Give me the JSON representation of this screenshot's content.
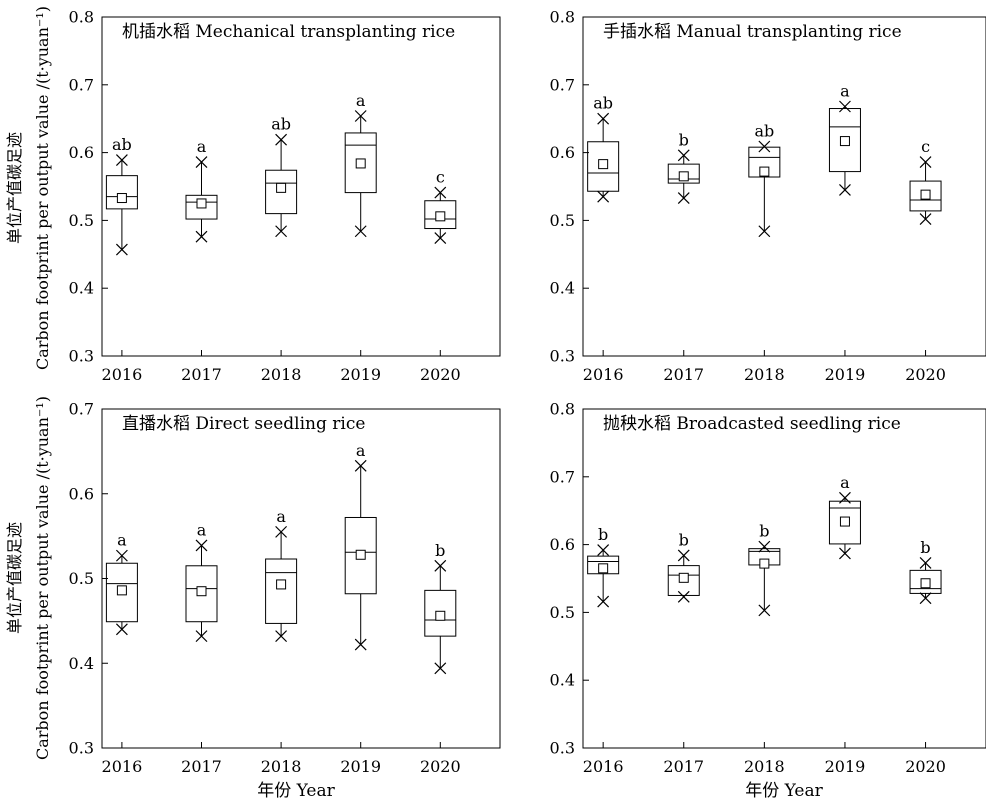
{
  "y_axis_label_lines": [
    "单位产值碳足迹",
    "Carbon footprint per output value /(t·yuan⁻¹)"
  ],
  "x_axis_label": "年份 Year",
  "chart_data": [
    {
      "type": "box",
      "title": "机插水稻 Mechanical transplanting rice",
      "xlabel": "",
      "ylabel": "单位产值碳足迹 Carbon footprint per output value /(t·yuan⁻¹)",
      "categories": [
        "2016",
        "2017",
        "2018",
        "2019",
        "2020"
      ],
      "ylim": [
        0.3,
        0.8
      ],
      "yticks": [
        "0.3",
        "0.4",
        "0.5",
        "0.6",
        "0.7",
        "0.8"
      ],
      "boxes": [
        {
          "q1": 0.517,
          "median": 0.535,
          "q3": 0.566,
          "mean": 0.533,
          "max": 0.589,
          "min": 0.457,
          "letter": "ab"
        },
        {
          "q1": 0.502,
          "median": 0.527,
          "q3": 0.537,
          "mean": 0.525,
          "max": 0.586,
          "min": 0.476,
          "letter": "a"
        },
        {
          "q1": 0.51,
          "median": 0.555,
          "q3": 0.574,
          "mean": 0.548,
          "max": 0.619,
          "min": 0.484,
          "letter": "ab"
        },
        {
          "q1": 0.541,
          "median": 0.611,
          "q3": 0.629,
          "mean": 0.584,
          "max": 0.654,
          "min": 0.484,
          "letter": "a"
        },
        {
          "q1": 0.488,
          "median": 0.502,
          "q3": 0.529,
          "mean": 0.506,
          "max": 0.541,
          "min": 0.474,
          "letter": "c"
        }
      ]
    },
    {
      "type": "box",
      "title": "手插水稻 Manual transplanting rice",
      "xlabel": "",
      "ylabel": "",
      "categories": [
        "2016",
        "2017",
        "2018",
        "2019",
        "2020"
      ],
      "ylim": [
        0.3,
        0.8
      ],
      "yticks": [
        "0.3",
        "0.4",
        "0.5",
        "0.6",
        "0.7",
        "0.8"
      ],
      "boxes": [
        {
          "q1": 0.543,
          "median": 0.57,
          "q3": 0.616,
          "mean": 0.583,
          "max": 0.65,
          "min": 0.535,
          "letter": "ab"
        },
        {
          "q1": 0.555,
          "median": 0.561,
          "q3": 0.583,
          "mean": 0.565,
          "max": 0.596,
          "min": 0.533,
          "letter": "b"
        },
        {
          "q1": 0.564,
          "median": 0.593,
          "q3": 0.608,
          "mean": 0.572,
          "max": 0.609,
          "min": 0.484,
          "letter": "ab"
        },
        {
          "q1": 0.572,
          "median": 0.638,
          "q3": 0.665,
          "mean": 0.617,
          "max": 0.668,
          "min": 0.545,
          "letter": "a"
        },
        {
          "q1": 0.514,
          "median": 0.53,
          "q3": 0.558,
          "mean": 0.538,
          "max": 0.586,
          "min": 0.502,
          "letter": "c"
        }
      ]
    },
    {
      "type": "box",
      "title": "直播水稻 Direct seedling rice",
      "xlabel": "年份 Year",
      "ylabel": "单位产值碳足迹 Carbon footprint per output value /(t·yuan⁻¹)",
      "categories": [
        "2016",
        "2017",
        "2018",
        "2019",
        "2020"
      ],
      "ylim": [
        0.3,
        0.7
      ],
      "yticks": [
        "0.3",
        "0.4",
        "0.5",
        "0.6",
        "0.7"
      ],
      "boxes": [
        {
          "q1": 0.449,
          "median": 0.494,
          "q3": 0.518,
          "mean": 0.486,
          "max": 0.527,
          "min": 0.44,
          "letter": "a"
        },
        {
          "q1": 0.449,
          "median": 0.488,
          "q3": 0.515,
          "mean": 0.485,
          "max": 0.539,
          "min": 0.432,
          "letter": "a"
        },
        {
          "q1": 0.447,
          "median": 0.507,
          "q3": 0.523,
          "mean": 0.493,
          "max": 0.555,
          "min": 0.432,
          "letter": "a"
        },
        {
          "q1": 0.482,
          "median": 0.531,
          "q3": 0.572,
          "mean": 0.528,
          "max": 0.633,
          "min": 0.422,
          "letter": "a"
        },
        {
          "q1": 0.432,
          "median": 0.451,
          "q3": 0.486,
          "mean": 0.456,
          "max": 0.515,
          "min": 0.394,
          "letter": "b"
        }
      ]
    },
    {
      "type": "box",
      "title": "抛秧水稻 Broadcasted seedling rice",
      "xlabel": "年份 Year",
      "ylabel": "",
      "categories": [
        "2016",
        "2017",
        "2018",
        "2019",
        "2020"
      ],
      "ylim": [
        0.3,
        0.8
      ],
      "yticks": [
        "0.3",
        "0.4",
        "0.5",
        "0.6",
        "0.7",
        "0.8"
      ],
      "boxes": [
        {
          "q1": 0.557,
          "median": 0.575,
          "q3": 0.583,
          "mean": 0.565,
          "max": 0.592,
          "min": 0.516,
          "letter": "b"
        },
        {
          "q1": 0.525,
          "median": 0.555,
          "q3": 0.569,
          "mean": 0.551,
          "max": 0.584,
          "min": 0.523,
          "letter": "b"
        },
        {
          "q1": 0.57,
          "median": 0.59,
          "q3": 0.594,
          "mean": 0.572,
          "max": 0.597,
          "min": 0.503,
          "letter": "b"
        },
        {
          "q1": 0.601,
          "median": 0.654,
          "q3": 0.664,
          "mean": 0.634,
          "max": 0.669,
          "min": 0.587,
          "letter": "a"
        },
        {
          "q1": 0.528,
          "median": 0.535,
          "q3": 0.562,
          "mean": 0.543,
          "max": 0.573,
          "min": 0.521,
          "letter": "b"
        }
      ]
    }
  ]
}
